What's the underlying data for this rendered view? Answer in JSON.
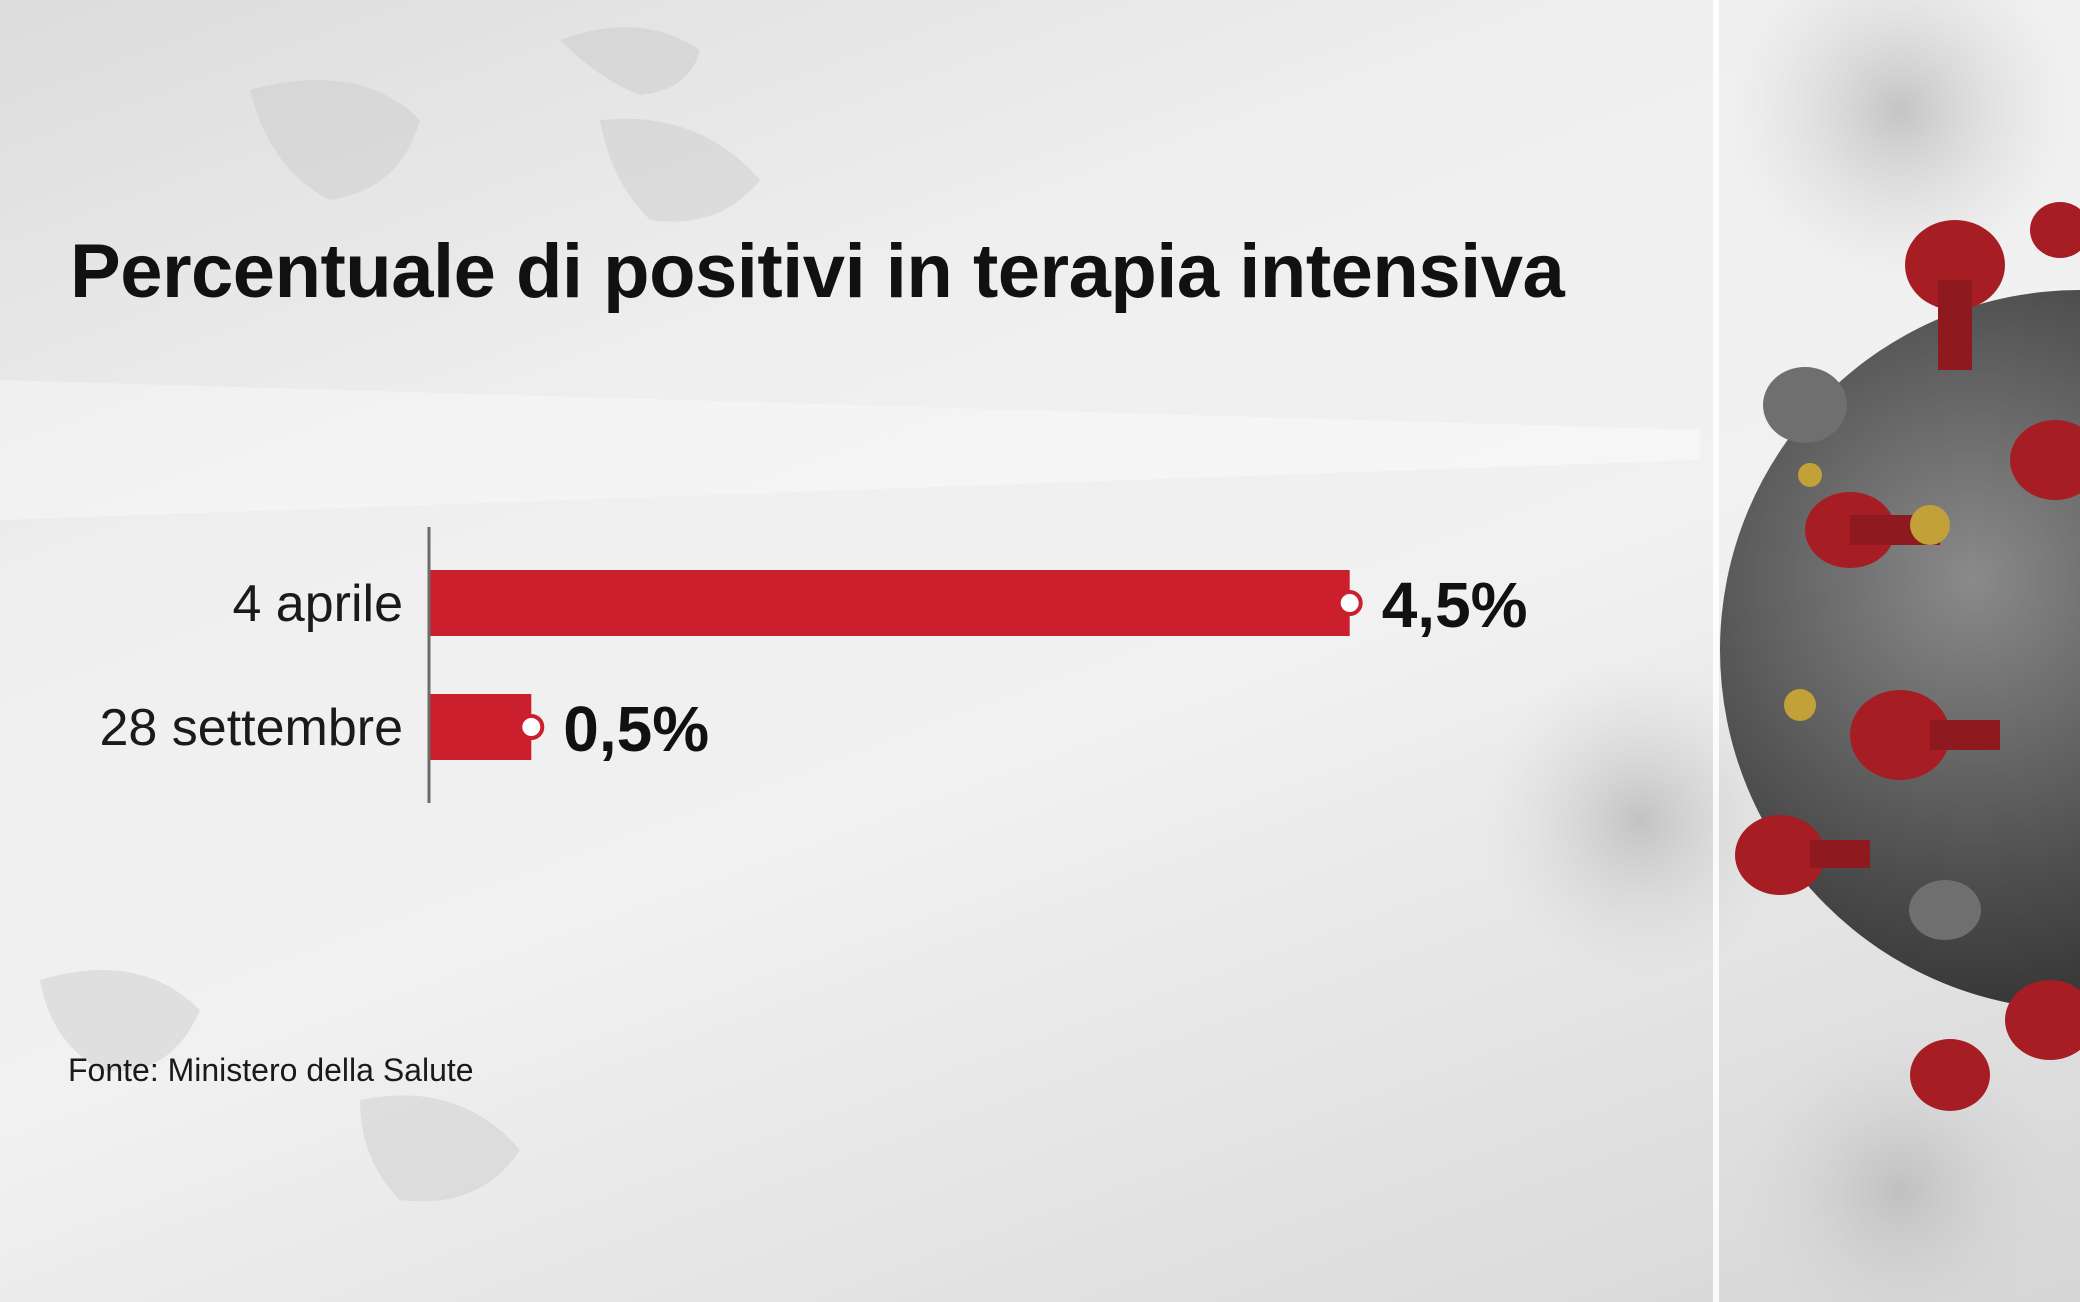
{
  "title": "Percentuale di positivi in terapia intensiva",
  "source": "Fonte: Ministero della Salute",
  "colors": {
    "bar": "#cc1f2e",
    "marker_fill": "#ffffff",
    "axis": "#6b6b6b",
    "text": "#111111"
  },
  "chart_data": {
    "type": "bar",
    "orientation": "horizontal",
    "title": "Percentuale di positivi in terapia intensiva",
    "xlabel": "",
    "ylabel": "",
    "xlim": [
      0,
      5
    ],
    "grid": false,
    "categories": [
      "4 aprile",
      "28 settembre"
    ],
    "values": [
      4.5,
      0.5
    ],
    "value_labels": [
      "4,5%",
      "0,5%"
    ],
    "unit": "%"
  }
}
